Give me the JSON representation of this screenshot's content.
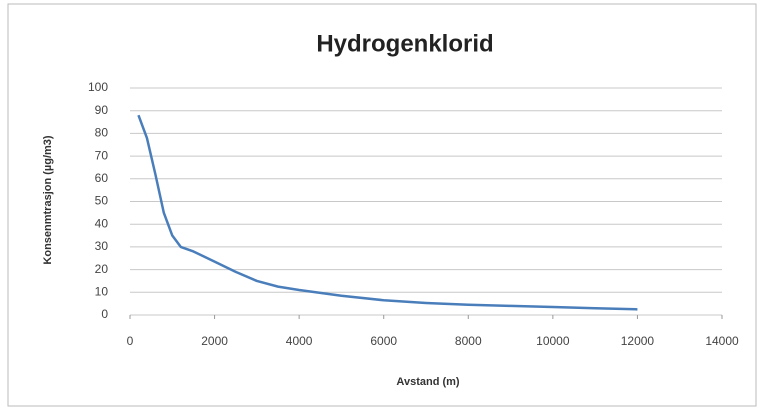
{
  "chart_data": {
    "type": "line",
    "title": "Hydrogenklorid",
    "x_label": "Avstand (m)",
    "y_label": "Konsenmtrasjon (µg/m3)",
    "x": [
      200,
      400,
      600,
      800,
      1000,
      1200,
      1500,
      2000,
      2500,
      3000,
      3500,
      4000,
      5000,
      6000,
      7000,
      8000,
      9000,
      10000,
      11000,
      12000
    ],
    "series": [
      {
        "color": "#4a7ebb",
        "values": [
          88,
          78,
          62,
          45,
          35,
          30,
          28,
          23.5,
          19,
          15,
          12.5,
          11,
          8.5,
          6.5,
          5.3,
          4.5,
          4,
          3.5,
          3,
          2.5
        ]
      }
    ],
    "xlim": [
      0,
      14000
    ],
    "xticks": [
      0,
      2000,
      4000,
      6000,
      8000,
      10000,
      12000,
      14000
    ],
    "ylim": [
      0,
      100
    ],
    "yticks": [
      0,
      10,
      20,
      30,
      40,
      50,
      60,
      70,
      80,
      90,
      100
    ],
    "grid": true
  }
}
